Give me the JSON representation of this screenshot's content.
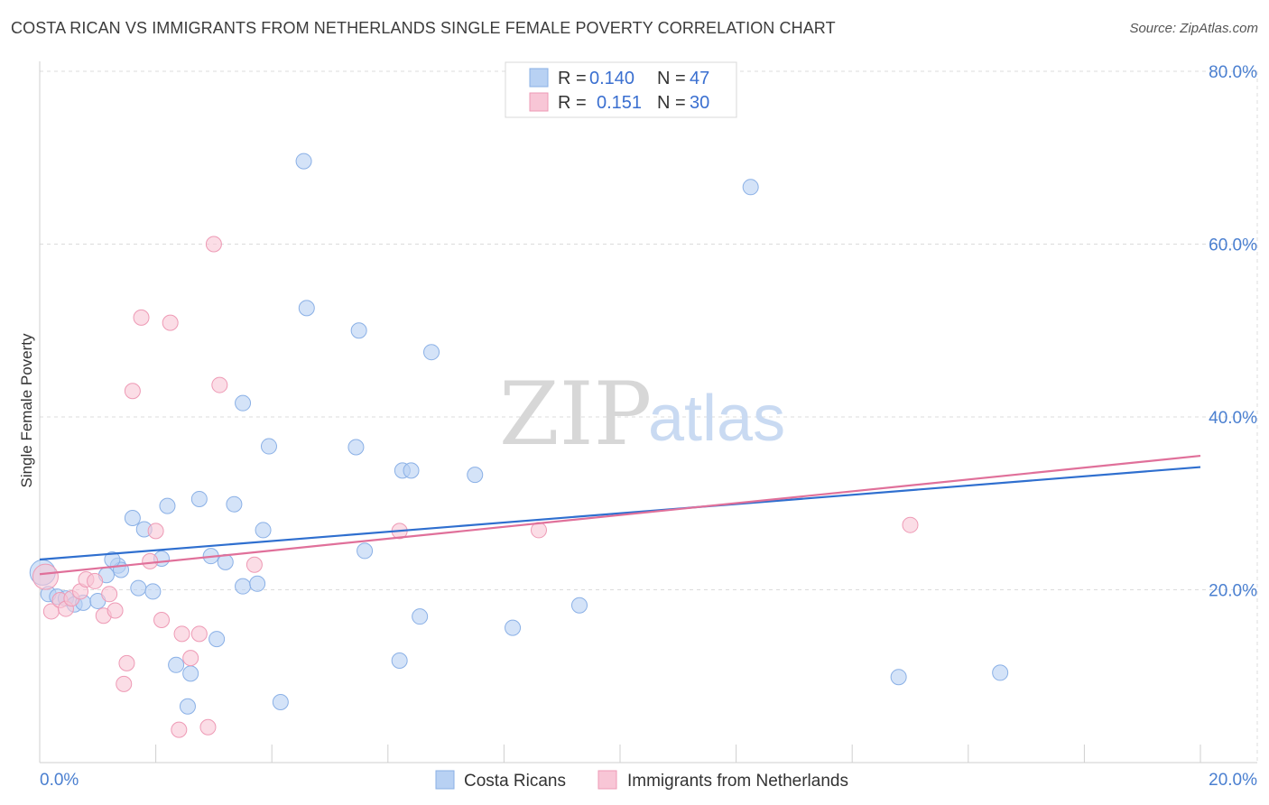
{
  "header": {
    "title": "COSTA RICAN VS IMMIGRANTS FROM NETHERLANDS SINGLE FEMALE POVERTY CORRELATION CHART",
    "source": "Source: ZipAtlas.com"
  },
  "watermark": {
    "zip": "ZIP",
    "atlas": "atlas"
  },
  "colors": {
    "blue_fill": "#b8d1f3",
    "blue_stroke": "#8ab0e6",
    "blue_line": "#2f6fcf",
    "pink_fill": "#f8c6d6",
    "pink_stroke": "#ee9ab5",
    "pink_line": "#e0709a",
    "grid": "#dcdcdc",
    "tick_text": "#4a7fd0"
  },
  "legend": {
    "rows": [
      {
        "r_label": "R = ",
        "r_value": "0.140",
        "n_label": "N = ",
        "n_value": "47",
        "series": "blue"
      },
      {
        "r_label": "R = ",
        "r_value": "0.151",
        "n_label": "N = ",
        "n_value": "30",
        "series": "pink"
      }
    ]
  },
  "bottom_legend": {
    "items": [
      "Costa Ricans",
      "Immigrants from Netherlands"
    ]
  },
  "chart_data": {
    "type": "scatter",
    "title": "COSTA RICAN VS IMMIGRANTS FROM NETHERLANDS SINGLE FEMALE POVERTY CORRELATION CHART",
    "xlabel": "",
    "ylabel": "Single Female Poverty",
    "xlim": [
      0,
      20
    ],
    "ylim": [
      0,
      80
    ],
    "x_tick_labels": [
      "0.0%",
      "20.0%"
    ],
    "y_tick_labels": [
      "20.0%",
      "40.0%",
      "60.0%",
      "80.0%"
    ],
    "y_tick_values": [
      20,
      40,
      60,
      80
    ],
    "grid": true,
    "legend_position": "top-center",
    "series": [
      {
        "name": "Costa Ricans",
        "color": "blue",
        "R": 0.14,
        "N": 47,
        "trend": {
          "x": [
            0,
            20
          ],
          "y": [
            23.5,
            34.2
          ]
        },
        "points": [
          {
            "x": 0.05,
            "y": 22.0,
            "big": true
          },
          {
            "x": 0.15,
            "y": 19.5
          },
          {
            "x": 0.3,
            "y": 19.2
          },
          {
            "x": 0.45,
            "y": 19.0
          },
          {
            "x": 0.6,
            "y": 18.3
          },
          {
            "x": 0.75,
            "y": 18.5
          },
          {
            "x": 1.0,
            "y": 18.7
          },
          {
            "x": 1.15,
            "y": 21.7
          },
          {
            "x": 1.35,
            "y": 22.8
          },
          {
            "x": 1.4,
            "y": 22.3
          },
          {
            "x": 1.6,
            "y": 28.3
          },
          {
            "x": 1.7,
            "y": 20.2
          },
          {
            "x": 1.8,
            "y": 27.0
          },
          {
            "x": 1.95,
            "y": 19.8
          },
          {
            "x": 2.1,
            "y": 23.6
          },
          {
            "x": 2.2,
            "y": 29.7
          },
          {
            "x": 2.35,
            "y": 11.3
          },
          {
            "x": 2.55,
            "y": 6.5
          },
          {
            "x": 2.6,
            "y": 10.3
          },
          {
            "x": 2.75,
            "y": 30.5
          },
          {
            "x": 2.95,
            "y": 23.9
          },
          {
            "x": 3.05,
            "y": 14.3
          },
          {
            "x": 3.2,
            "y": 23.2
          },
          {
            "x": 3.35,
            "y": 29.9
          },
          {
            "x": 3.5,
            "y": 20.4
          },
          {
            "x": 3.75,
            "y": 20.7
          },
          {
            "x": 3.85,
            "y": 26.9
          },
          {
            "x": 3.95,
            "y": 36.6
          },
          {
            "x": 4.15,
            "y": 7.0
          },
          {
            "x": 4.55,
            "y": 69.6
          },
          {
            "x": 4.6,
            "y": 52.6
          },
          {
            "x": 5.45,
            "y": 36.5
          },
          {
            "x": 5.5,
            "y": 50.0
          },
          {
            "x": 5.6,
            "y": 24.5
          },
          {
            "x": 6.2,
            "y": 11.8
          },
          {
            "x": 6.25,
            "y": 33.8
          },
          {
            "x": 6.4,
            "y": 33.8
          },
          {
            "x": 6.55,
            "y": 16.9
          },
          {
            "x": 6.75,
            "y": 47.5
          },
          {
            "x": 7.5,
            "y": 33.3
          },
          {
            "x": 8.15,
            "y": 15.6
          },
          {
            "x": 9.3,
            "y": 18.2
          },
          {
            "x": 12.25,
            "y": 66.6
          },
          {
            "x": 14.8,
            "y": 9.9
          },
          {
            "x": 16.55,
            "y": 10.4
          },
          {
            "x": 3.5,
            "y": 41.6
          },
          {
            "x": 1.25,
            "y": 23.5
          }
        ]
      },
      {
        "name": "Immigrants from Netherlands",
        "color": "pink",
        "R": 0.151,
        "N": 30,
        "trend": {
          "x": [
            0,
            20
          ],
          "y": [
            21.8,
            35.5
          ]
        },
        "points": [
          {
            "x": 0.1,
            "y": 21.5,
            "big": true
          },
          {
            "x": 0.2,
            "y": 17.5
          },
          {
            "x": 0.35,
            "y": 18.8
          },
          {
            "x": 0.45,
            "y": 17.8
          },
          {
            "x": 0.55,
            "y": 19.0
          },
          {
            "x": 0.7,
            "y": 19.8
          },
          {
            "x": 0.8,
            "y": 21.2
          },
          {
            "x": 0.95,
            "y": 21.0
          },
          {
            "x": 1.1,
            "y": 17.0
          },
          {
            "x": 1.2,
            "y": 19.5
          },
          {
            "x": 1.3,
            "y": 17.6
          },
          {
            "x": 1.5,
            "y": 11.5
          },
          {
            "x": 1.45,
            "y": 9.1
          },
          {
            "x": 1.6,
            "y": 43.0
          },
          {
            "x": 1.75,
            "y": 51.5
          },
          {
            "x": 1.9,
            "y": 23.3
          },
          {
            "x": 2.0,
            "y": 26.8
          },
          {
            "x": 2.1,
            "y": 16.5
          },
          {
            "x": 2.25,
            "y": 50.9
          },
          {
            "x": 2.4,
            "y": 3.8
          },
          {
            "x": 2.45,
            "y": 14.9
          },
          {
            "x": 2.6,
            "y": 12.1
          },
          {
            "x": 2.75,
            "y": 14.9
          },
          {
            "x": 2.9,
            "y": 4.1
          },
          {
            "x": 3.0,
            "y": 60.0
          },
          {
            "x": 3.1,
            "y": 43.7
          },
          {
            "x": 3.7,
            "y": 22.9
          },
          {
            "x": 6.2,
            "y": 26.8
          },
          {
            "x": 8.6,
            "y": 26.9
          },
          {
            "x": 15.0,
            "y": 27.5
          }
        ]
      }
    ]
  }
}
